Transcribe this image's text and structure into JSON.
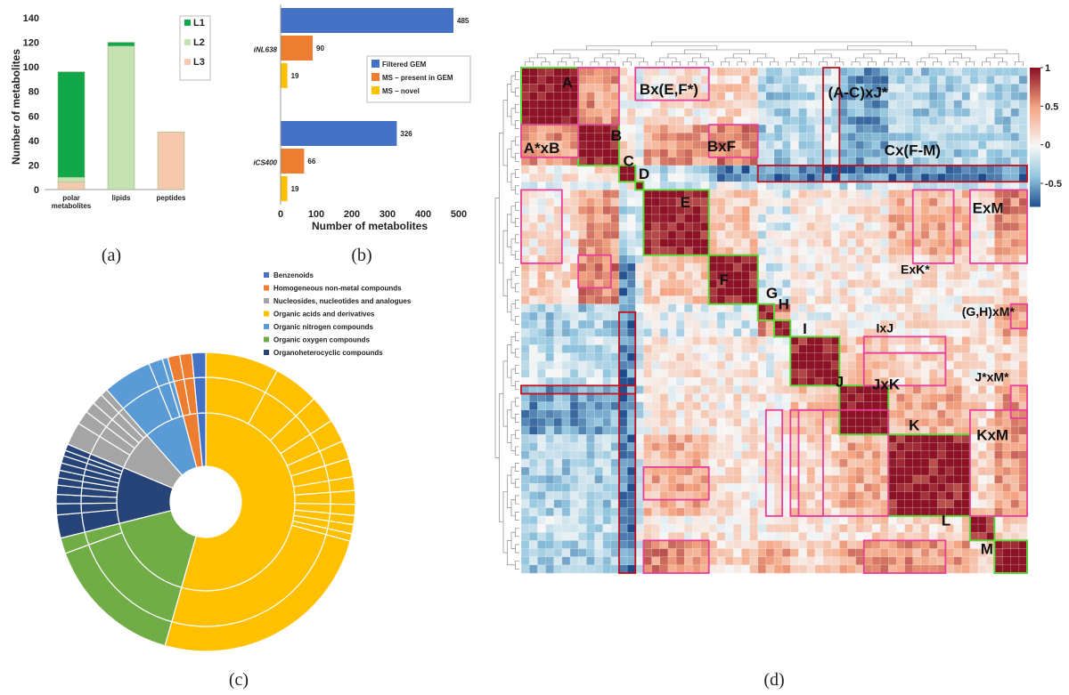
{
  "panel_labels": {
    "a": "(a)",
    "b": "(b)",
    "c": "(c)",
    "d": "(d)"
  },
  "colors": {
    "L1": "#12a84a",
    "L2": "#c6e2b3",
    "L3": "#f6c8ae",
    "filtered": "#4472c4",
    "ms_gem": "#ed7d31",
    "ms_novel": "#ffc000",
    "sun_yellow": "#ffc000",
    "sun_green": "#70ad47",
    "sun_navy": "#264478",
    "sun_gray": "#a5a5a5",
    "sun_blue": "#5b9bd5",
    "sun_orange": "#ed7d31",
    "sun_blue2": "#4472c4",
    "green_box": "#5ed63b",
    "pink_box": "#e8409a",
    "red_box": "#c0111f"
  },
  "chart_data": [
    {
      "type": "bar",
      "panel": "a",
      "stacked": true,
      "categories": [
        "polar metabolites",
        "lipids",
        "peptides"
      ],
      "series": [
        {
          "name": "L1",
          "values": [
            86,
            3,
            0
          ]
        },
        {
          "name": "L2",
          "values": [
            4,
            117,
            0
          ]
        },
        {
          "name": "L3",
          "values": [
            6,
            0,
            47
          ]
        }
      ],
      "ylabel": "Number of metabolites",
      "ylim": [
        0,
        140
      ],
      "yticks": [
        0,
        20,
        40,
        60,
        80,
        100,
        120,
        140
      ],
      "legend": "top-right"
    },
    {
      "type": "bar",
      "panel": "b",
      "orientation": "horizontal",
      "categories": [
        "iNL638",
        "iCS400"
      ],
      "series": [
        {
          "name": "Filtered GEM",
          "values": [
            485,
            326
          ]
        },
        {
          "name": "MS – present in GEM",
          "values": [
            90,
            66
          ]
        },
        {
          "name": "MS – novel",
          "values": [
            19,
            19
          ]
        }
      ],
      "xlabel": "Number of metabolites",
      "xlim": [
        0,
        500
      ],
      "xticks": [
        0,
        100,
        200,
        300,
        400,
        500
      ],
      "legend": "right"
    },
    {
      "type": "pie",
      "panel": "c",
      "variant": "sunburst",
      "legend": "top",
      "legend_entries": [
        "Benzenoids",
        "Homogeneous non-metal compounds",
        "Nucleosides, nucleotides and analogues",
        "Organic acids and derivatives",
        "Organic nitrogen compounds",
        "Organic oxygen compounds",
        "Organoheterocyclic compounds"
      ],
      "legend_colors": [
        "#4472c4",
        "#ed7d31",
        "#a5a5a5",
        "#ffc000",
        "#5b9bd5",
        "#70ad47",
        "#264478"
      ],
      "slices": [
        {
          "name": "Organic acids and derivatives",
          "value": 54.4,
          "sub": [
            8,
            5,
            3,
            2.5,
            2,
            2,
            1.5,
            1.5,
            1.2,
            1,
            1,
            0.8,
            25.4
          ]
        },
        {
          "name": "Organic oxygen compounds",
          "value": 16.7,
          "sub": [
            15,
            1.7
          ]
        },
        {
          "name": "Organoheterocyclic compounds",
          "value": 10.2,
          "sub": [
            2.5,
            1.2,
            1,
            1,
            0.8,
            0.8,
            0.8,
            0.8,
            0.6,
            0.7
          ]
        },
        {
          "name": "Nucleosides, nucleotides and analogues",
          "value": 7.2,
          "sub": [
            2.5,
            1.5,
            1.2,
            1.2,
            0.8
          ]
        },
        {
          "name": "Organic nitrogen compounds",
          "value": 7.4,
          "sub": [
            5.3,
            1.5,
            0.6
          ]
        },
        {
          "name": "Homogeneous non-metal compounds",
          "value": 2.6,
          "sub": [
            1.3,
            1.3
          ]
        },
        {
          "name": "Benzenoids",
          "value": 1.5,
          "sub": [
            1.5
          ]
        }
      ]
    },
    {
      "type": "heatmap",
      "panel": "d",
      "colorbar_ticks": [
        "1",
        "0.5",
        "0",
        "-0.5"
      ],
      "colorbar_range": [
        -0.8,
        1
      ],
      "cluster_labels": [
        "A",
        "B",
        "C",
        "D",
        "E",
        "F",
        "G",
        "H",
        "I",
        "J",
        "K",
        "L",
        "M"
      ],
      "block_labels": [
        "A*xB",
        "Bx(E,F*)",
        "BxF",
        "(A-C)xJ*",
        "Cx(F-M)",
        "ExM",
        "ExK*",
        "(G,H)xM*",
        "IxJ",
        "JxK",
        "J*xM*",
        "KxM"
      ]
    }
  ]
}
